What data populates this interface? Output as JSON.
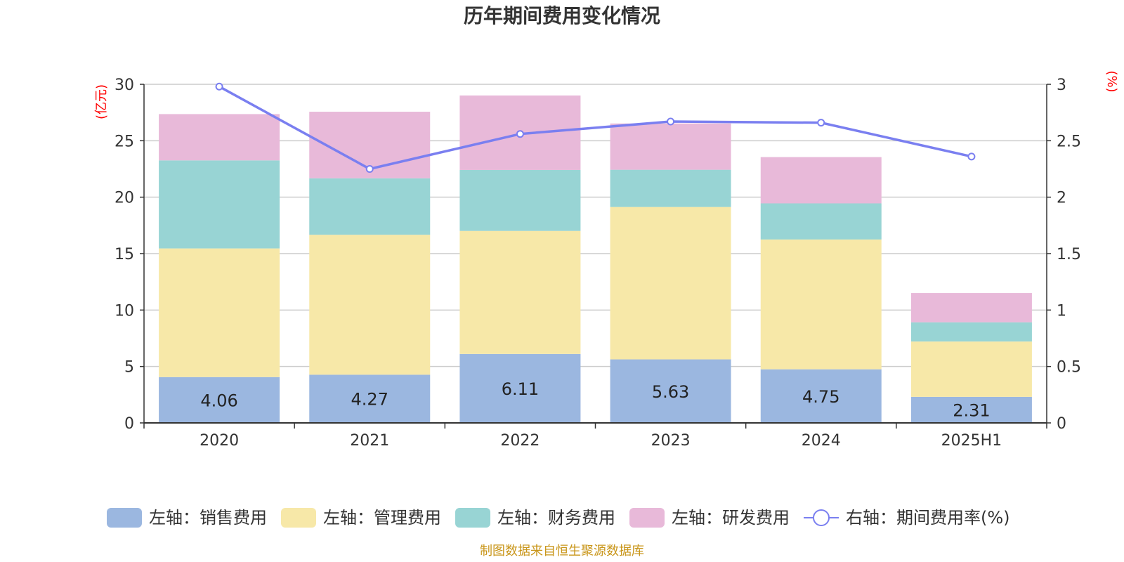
{
  "chart_data": {
    "type": "bar",
    "stacked": true,
    "title": "历年期间费用变化情况",
    "categories": [
      "2020",
      "2021",
      "2022",
      "2023",
      "2024",
      "2025H1"
    ],
    "left_axis": {
      "unit_label": "(亿元)",
      "ylim": [
        0,
        30
      ],
      "ticks": [
        "0",
        "5",
        "10",
        "15",
        "20",
        "25",
        "30"
      ]
    },
    "right_axis": {
      "unit_label": "(%)",
      "ylim": [
        0,
        3
      ],
      "ticks": [
        "0",
        "0.5",
        "1",
        "1.5",
        "2",
        "2.5",
        "3"
      ]
    },
    "series": [
      {
        "name": "左轴：销售费用",
        "axis": "left",
        "color": "#9bb7e0",
        "values": [
          4.06,
          4.27,
          6.11,
          5.63,
          4.75,
          2.31
        ],
        "show_labels": true
      },
      {
        "name": "左轴：管理费用",
        "axis": "left",
        "color": "#f7e8a8",
        "values": [
          11.4,
          12.4,
          10.9,
          13.5,
          11.5,
          4.9
        ]
      },
      {
        "name": "左轴：财务费用",
        "axis": "left",
        "color": "#98d4d4",
        "values": [
          7.8,
          5.0,
          5.4,
          3.3,
          3.2,
          1.7
        ]
      },
      {
        "name": "左轴：研发费用",
        "axis": "left",
        "color": "#e8b9d9",
        "values": [
          4.1,
          5.9,
          6.6,
          4.1,
          4.1,
          2.6
        ]
      },
      {
        "name": "右轴：期间费用率(%)",
        "axis": "right",
        "type": "line",
        "color": "#7a7ff0",
        "values": [
          2.98,
          2.25,
          2.56,
          2.67,
          2.66,
          2.36
        ]
      }
    ],
    "grid": true,
    "legend_position": "bottom"
  },
  "footer": {
    "source": "制图数据来自恒生聚源数据库"
  }
}
